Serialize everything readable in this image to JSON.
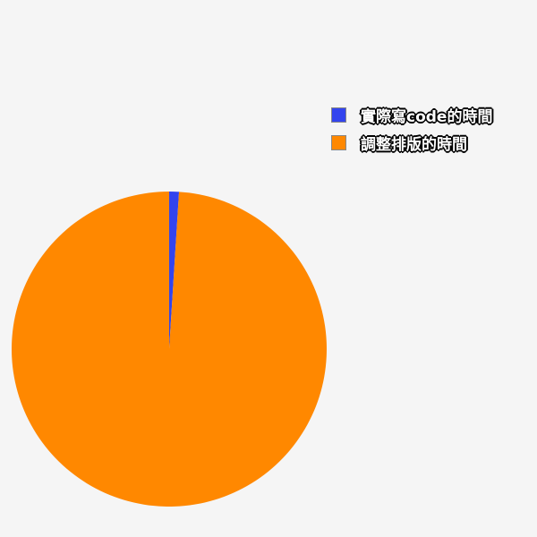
{
  "chart_data": {
    "type": "pie",
    "series": [
      {
        "name": "實際寫code的時間",
        "value": 1,
        "color": "#3344ee"
      },
      {
        "name": "調整排版的時間",
        "value": 99,
        "color": "#ff8800"
      }
    ],
    "start_angle_deg": 0,
    "direction": "clockwise",
    "legend_position": "top-right",
    "background": "#f5f5f5"
  }
}
